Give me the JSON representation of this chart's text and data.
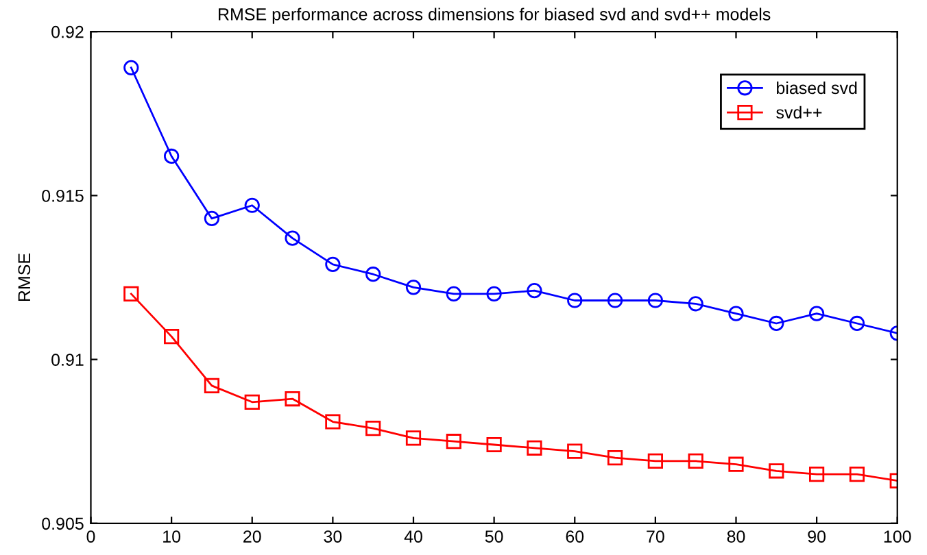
{
  "chart_data": {
    "type": "line",
    "title": "RMSE performance across dimensions for biased svd and svd++ models",
    "ylabel": "RMSE",
    "x": [
      5,
      10,
      15,
      20,
      25,
      30,
      35,
      40,
      45,
      50,
      55,
      60,
      65,
      70,
      75,
      80,
      85,
      90,
      95,
      100
    ],
    "series": [
      {
        "name": "biased svd",
        "color": "#0000ff",
        "marker": "circle",
        "values": [
          0.9189,
          0.9162,
          0.9143,
          0.9147,
          0.9137,
          0.9129,
          0.9126,
          0.9122,
          0.912,
          0.912,
          0.9121,
          0.9118,
          0.9118,
          0.9118,
          0.9117,
          0.9114,
          0.9111,
          0.9114,
          0.9111,
          0.9108
        ]
      },
      {
        "name": "svd++",
        "color": "#ff0000",
        "marker": "square",
        "values": [
          0.912,
          0.9107,
          0.9092,
          0.9087,
          0.9088,
          0.9081,
          0.9079,
          0.9076,
          0.9075,
          0.9074,
          0.9073,
          0.9072,
          0.907,
          0.9069,
          0.9069,
          0.9068,
          0.9066,
          0.9065,
          0.9065,
          0.9063
        ]
      }
    ],
    "xlim": [
      0,
      100
    ],
    "xticks": [
      0,
      10,
      20,
      30,
      40,
      50,
      60,
      70,
      80,
      90,
      100
    ],
    "ylim": [
      0.905,
      0.92
    ],
    "yticks": [
      0.905,
      0.91,
      0.915,
      0.92
    ],
    "grid": false,
    "legend": "top right",
    "line_style": "solid"
  }
}
